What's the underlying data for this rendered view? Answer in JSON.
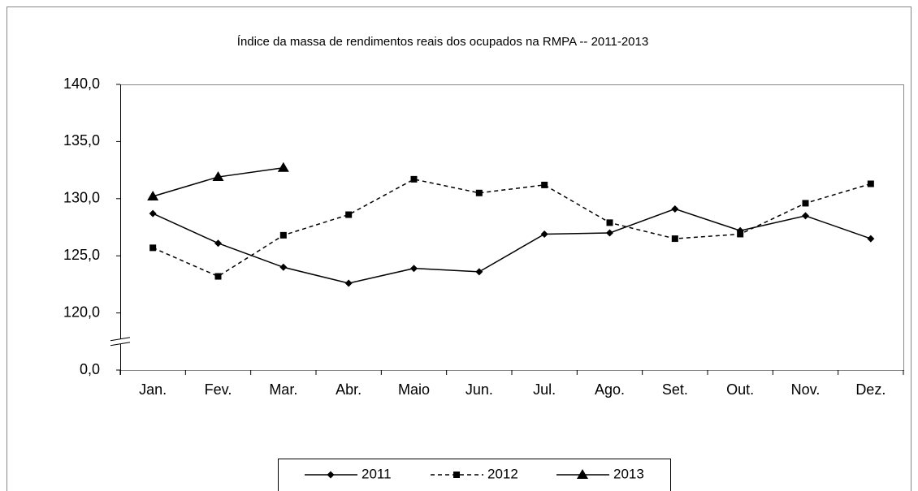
{
  "chart_data": {
    "type": "line",
    "title": "Índice da massa de rendimentos reais dos ocupados na RMPA -- 2011-2013",
    "categories": [
      "Jan.",
      "Fev.",
      "Mar.",
      "Abr.",
      "Maio",
      "Jun.",
      "Jul.",
      "Ago.",
      "Set.",
      "Out.",
      "Nov.",
      "Dez."
    ],
    "series": [
      {
        "name": "2011",
        "color": "#000000",
        "marker": "diamond",
        "dash": "solid",
        "values": [
          128.7,
          126.1,
          124.0,
          122.6,
          123.9,
          123.6,
          126.9,
          127.0,
          129.1,
          127.2,
          128.5,
          126.5
        ]
      },
      {
        "name": "2012",
        "color": "#000000",
        "marker": "square",
        "dash": "dashed",
        "values": [
          125.7,
          123.2,
          126.8,
          128.6,
          131.7,
          130.5,
          131.2,
          127.9,
          126.5,
          126.9,
          129.6,
          131.3
        ]
      },
      {
        "name": "2013",
        "color": "#000000",
        "marker": "triangle",
        "dash": "solid",
        "values": [
          130.2,
          131.9,
          132.7,
          null,
          null,
          null,
          null,
          null,
          null,
          null,
          null,
          null
        ]
      }
    ],
    "ylim": [
      0,
      140
    ],
    "yticks": [
      {
        "value": 0,
        "label": "0,0"
      },
      {
        "value": 120,
        "label": "120,0"
      },
      {
        "value": 125,
        "label": "125,0"
      },
      {
        "value": 130,
        "label": "130,0"
      },
      {
        "value": 135,
        "label": "135,0"
      },
      {
        "value": 140,
        "label": "140,0"
      }
    ],
    "broken_axis": true,
    "grid": false,
    "legend": "bottom"
  }
}
